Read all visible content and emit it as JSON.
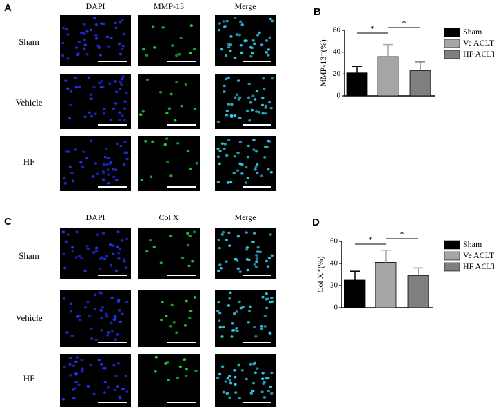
{
  "panel_labels": [
    "A",
    "B",
    "C",
    "D"
  ],
  "image_panels": [
    {
      "column_labels": [
        "DAPI",
        "MMP-13",
        "Merge"
      ],
      "row_labels": [
        "Sham",
        "Vehicle",
        "HF"
      ]
    },
    {
      "column_labels": [
        "DAPI",
        "Col X",
        "Merge"
      ],
      "row_labels": [
        "Sham",
        "Vehicle",
        "HF"
      ]
    }
  ],
  "chart_data": [
    {
      "type": "bar",
      "y_label": "MMP-13⁺(%)",
      "categories": [
        "Sham",
        "Ve ACLT",
        "HF ACLT"
      ],
      "values": [
        21,
        36,
        23
      ],
      "errors": [
        6,
        11,
        8
      ],
      "colors": [
        "#000000",
        "#a6a6a8",
        "#7f7f7f"
      ],
      "ylim": [
        0,
        60
      ],
      "yticks": [
        0,
        20,
        40,
        60
      ],
      "annotations": [
        "*",
        "*"
      ]
    },
    {
      "type": "bar",
      "y_label": "Col X⁺(%)",
      "categories": [
        "Sham",
        "Ve ACLT",
        "HF ACLT"
      ],
      "values": [
        25,
        41,
        29
      ],
      "errors": [
        8,
        11,
        7
      ],
      "colors": [
        "#000000",
        "#a6a6a8",
        "#7f7f7f"
      ],
      "ylim": [
        0,
        60
      ],
      "yticks": [
        0,
        20,
        40,
        60
      ],
      "annotations": [
        "*",
        "*"
      ]
    }
  ]
}
